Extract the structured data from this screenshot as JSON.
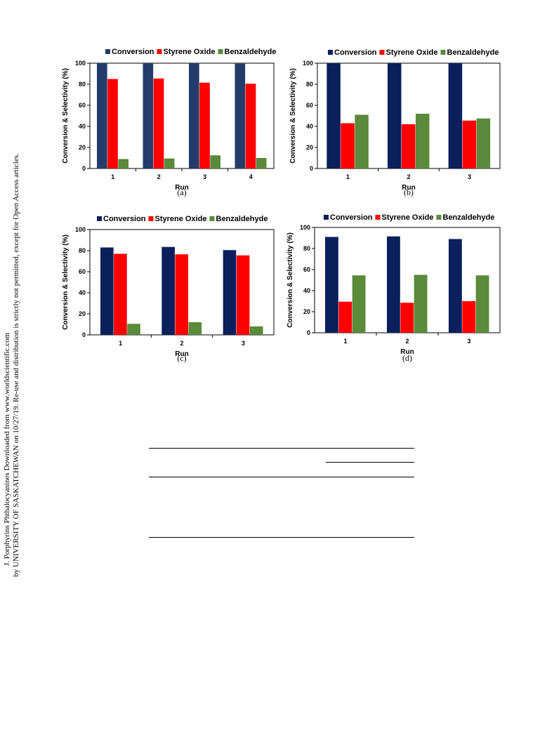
{
  "side_note": {
    "line1": "J. Porphyrins Phthalocyanines Downloaded from www.worldscientific.com",
    "line2": "by UNIVERSITY OF SASKATCHEWAN on 10/27/19. Re-use and distribution is strictly not permitted, except for Open Access articles."
  },
  "colors": {
    "conversion_a": "#243c6b",
    "conversion": "#0a1f5c",
    "styrene_oxide": "#ff0000",
    "benzaldehyde": "#5a8a3a"
  },
  "chart_data": [
    {
      "type": "bar",
      "caption": "(a)",
      "categories": [
        "1",
        "2",
        "3",
        "4"
      ],
      "series": [
        {
          "name": "Conversion",
          "values": [
            100,
            100,
            100,
            99.5
          ]
        },
        {
          "name": "Styrene Oxide",
          "values": [
            85,
            85.5,
            81.5,
            80.5
          ]
        },
        {
          "name": "Benzaldehyde",
          "values": [
            9,
            9.5,
            12.5,
            10
          ]
        }
      ],
      "xlabel": "Run",
      "ylabel": "Conversion & Selectivity (%)",
      "ylim": [
        0,
        100
      ],
      "yticks": [
        "0",
        "20",
        "40",
        "60",
        "80",
        "100"
      ],
      "legend": "top"
    },
    {
      "type": "bar",
      "caption": "(b)",
      "categories": [
        "1",
        "2",
        "3"
      ],
      "series": [
        {
          "name": "Conversion",
          "values": [
            100,
            100,
            100
          ]
        },
        {
          "name": "Styrene Oxide",
          "values": [
            43,
            42,
            45.5
          ]
        },
        {
          "name": "Benzaldehyde",
          "values": [
            51,
            52,
            47.5
          ]
        }
      ],
      "xlabel": "Run",
      "ylabel": "Conversion & Selectivity (%)",
      "ylim": [
        0,
        100
      ],
      "yticks": [
        "0",
        "20",
        "40",
        "60",
        "80",
        "100"
      ],
      "legend": "top"
    },
    {
      "type": "bar",
      "caption": "(c)",
      "categories": [
        "1",
        "2",
        "3"
      ],
      "series": [
        {
          "name": "Conversion",
          "values": [
            83,
            83.5,
            80.5
          ]
        },
        {
          "name": "Styrene Oxide",
          "values": [
            77,
            76.5,
            75.5
          ]
        },
        {
          "name": "Benzaldehyde",
          "values": [
            10.5,
            12,
            8
          ]
        }
      ],
      "xlabel": "Run",
      "ylabel": "Conversion & Selectivity (%)",
      "ylim": [
        0,
        100
      ],
      "yticks": [
        "0",
        "20",
        "40",
        "60",
        "80",
        "100"
      ],
      "legend": "top"
    },
    {
      "type": "bar",
      "caption": "(d)",
      "categories": [
        "1",
        "2",
        "3"
      ],
      "series": [
        {
          "name": "Conversion",
          "values": [
            91,
            91.5,
            89
          ]
        },
        {
          "name": "Styrene Oxide",
          "values": [
            29.5,
            28.5,
            30
          ]
        },
        {
          "name": "Benzaldehyde",
          "values": [
            54.5,
            55,
            54.5
          ]
        }
      ],
      "xlabel": "Run",
      "ylabel": "Conversion & Selectivity (%)",
      "ylim": [
        0,
        100
      ],
      "yticks": [
        "0",
        "20",
        "40",
        "60",
        "80",
        "100"
      ],
      "legend": "top"
    }
  ]
}
